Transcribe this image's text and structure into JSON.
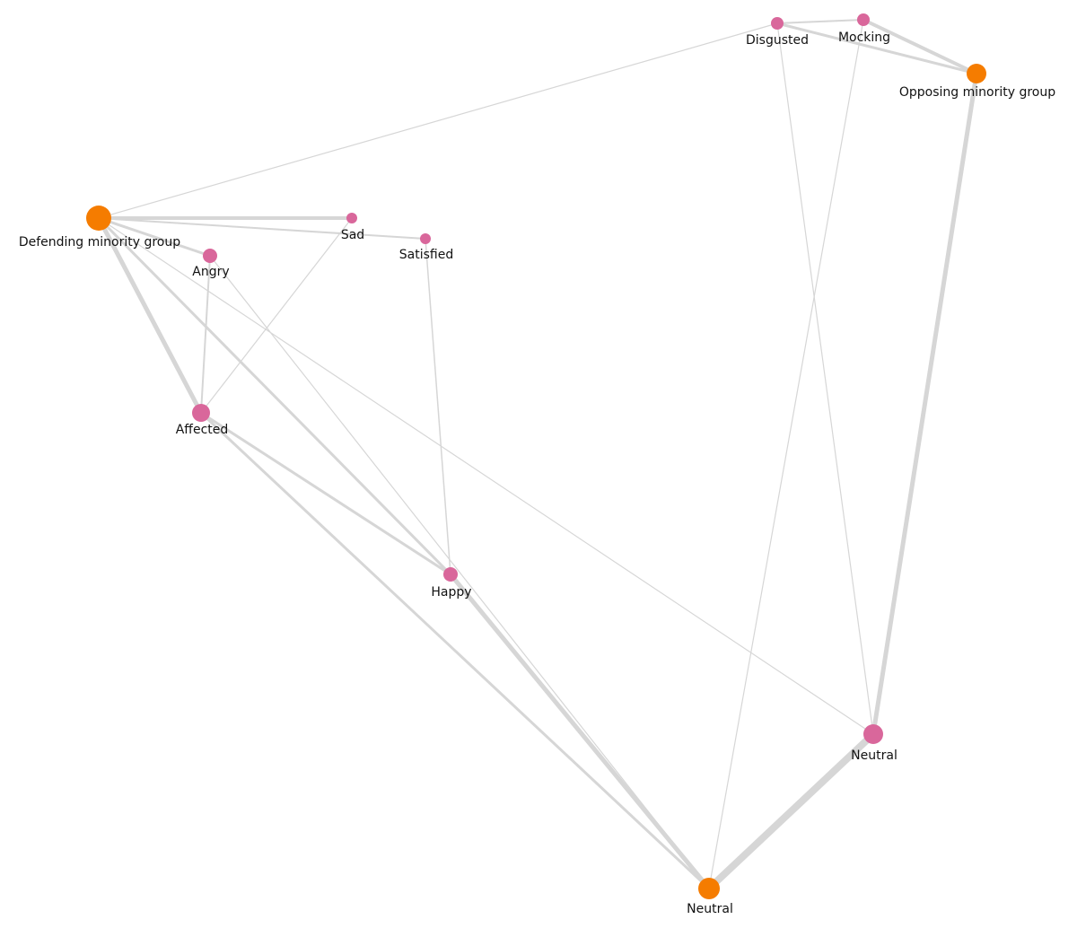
{
  "nodes": [
    {
      "label": "Defending minority group"
    },
    {
      "label": "Sad"
    },
    {
      "label": "Satisfied"
    },
    {
      "label": "Angry"
    },
    {
      "label": "Affected"
    },
    {
      "label": "Happy"
    },
    {
      "label": "Disgusted"
    },
    {
      "label": "Mocking"
    },
    {
      "label": "Opposing minority group"
    },
    {
      "label": "Neutral"
    },
    {
      "label": "Neutral"
    }
  ]
}
